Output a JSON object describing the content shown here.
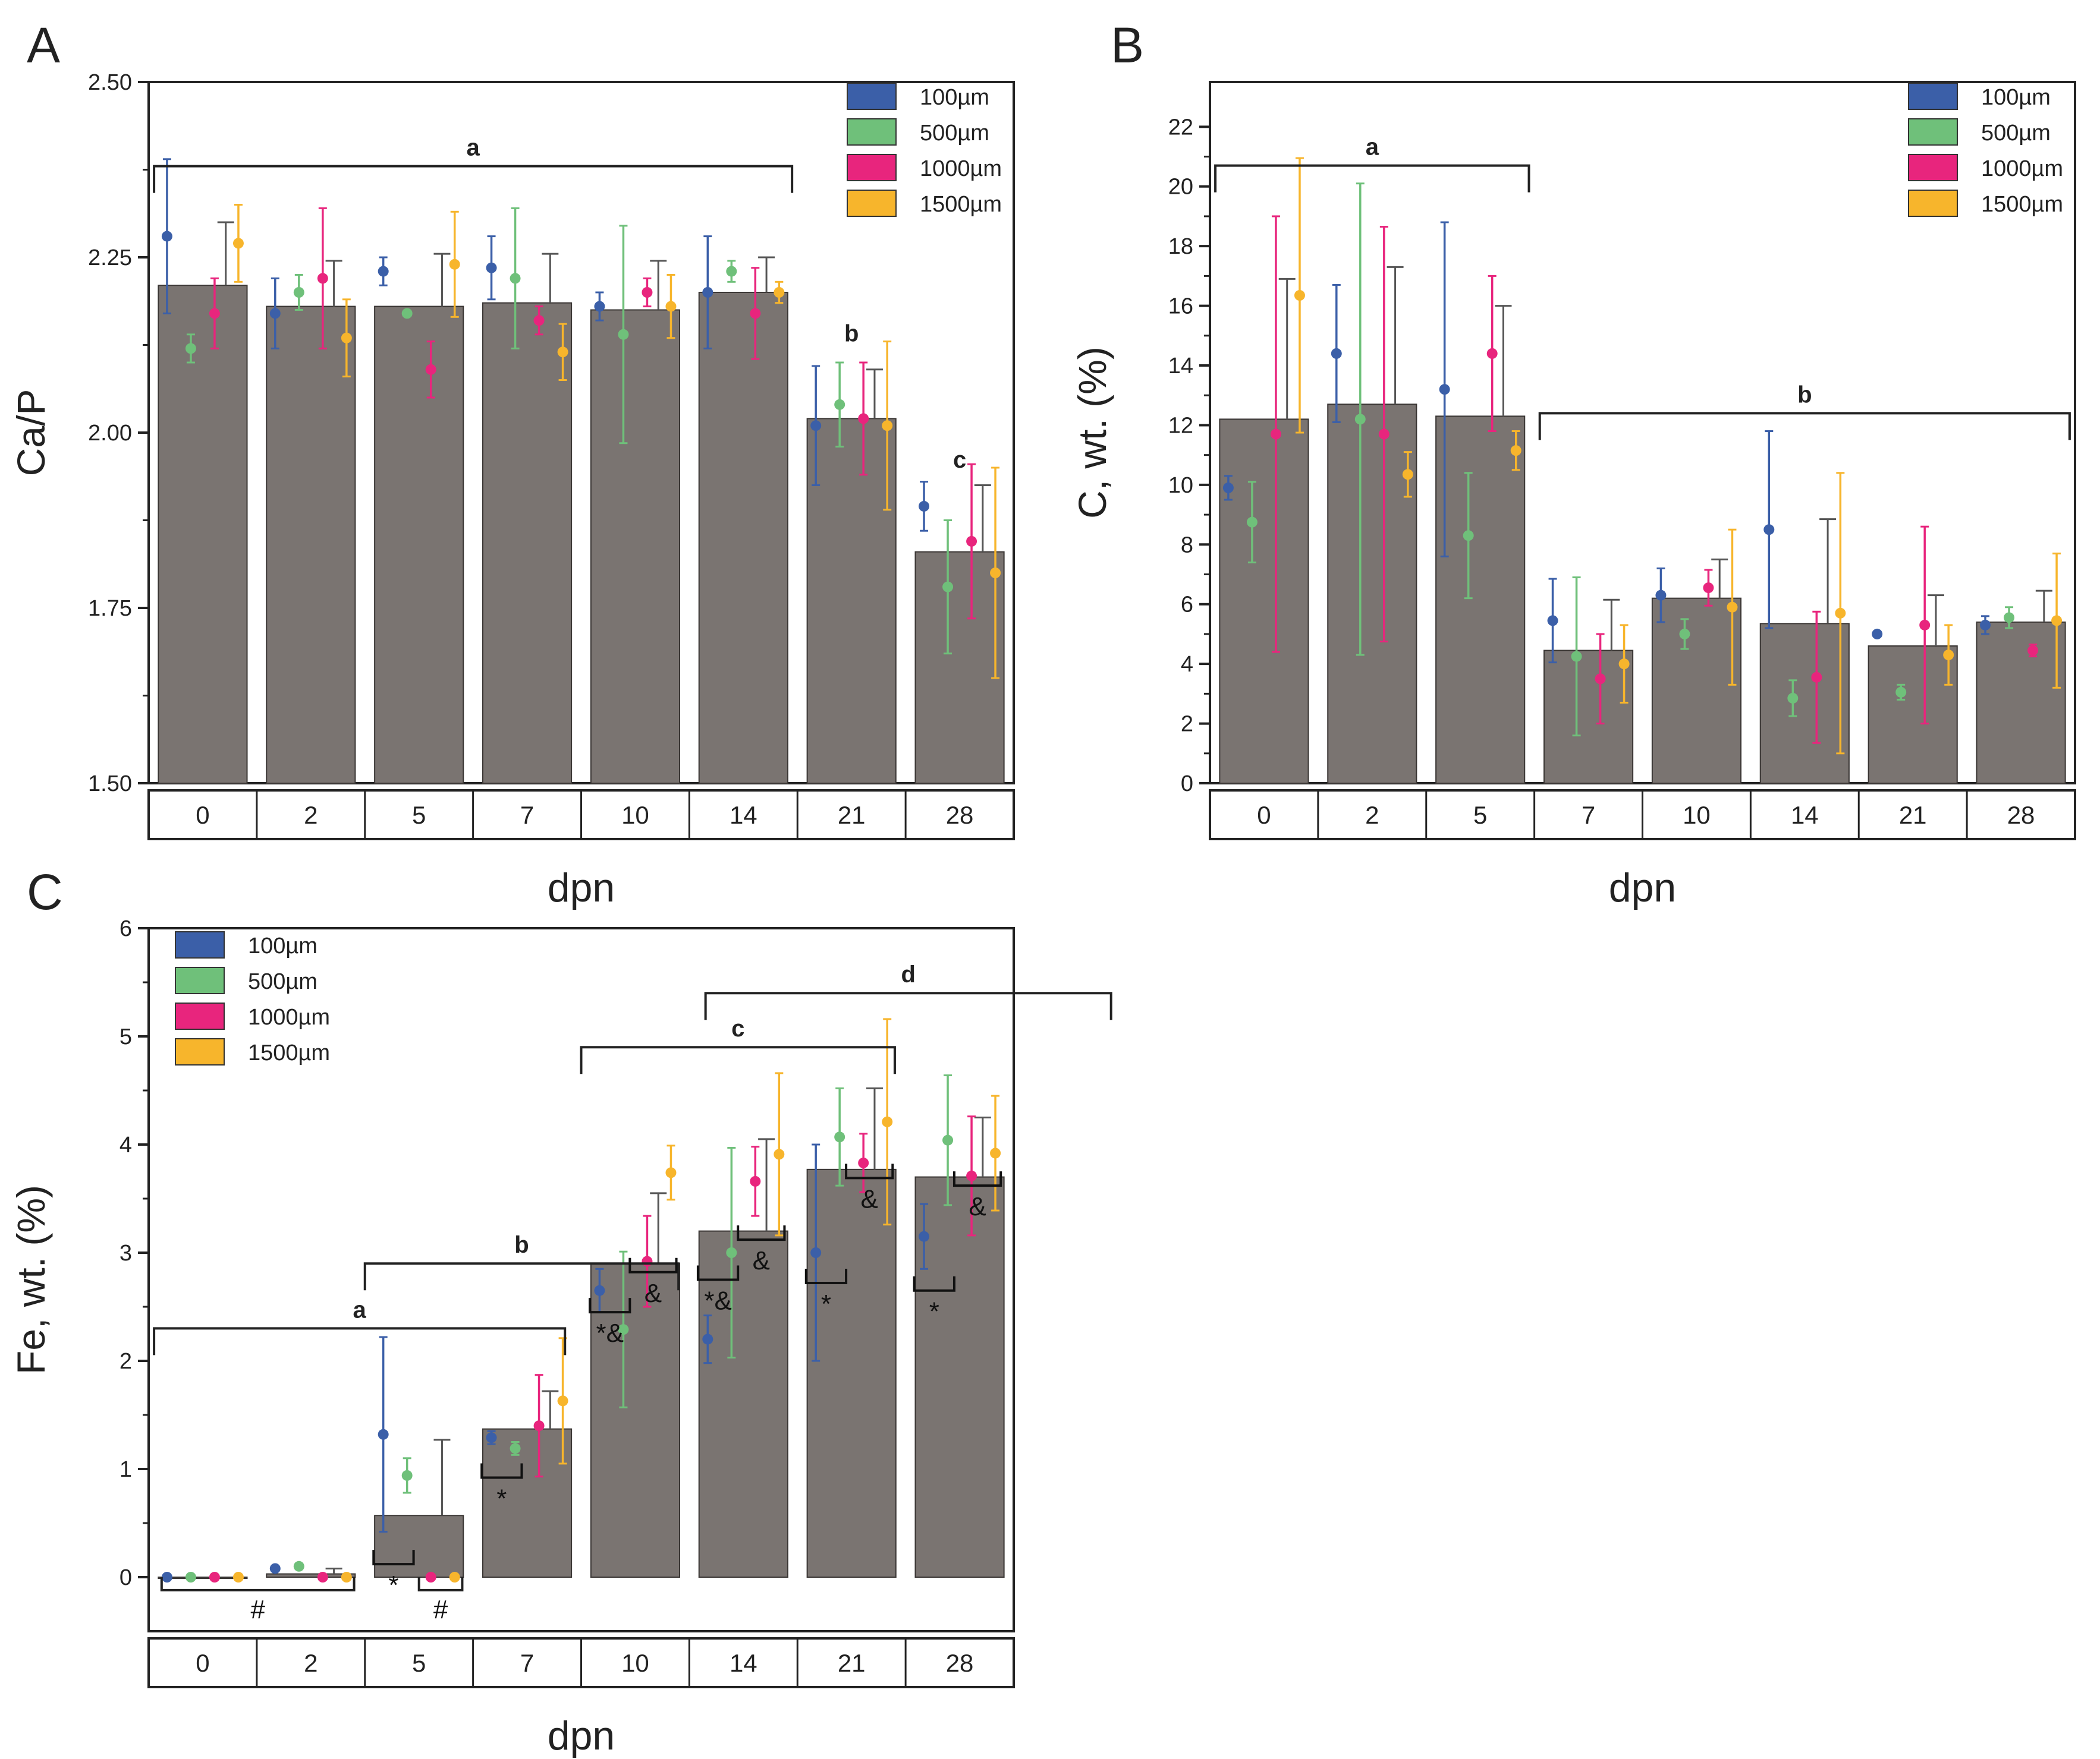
{
  "figure": {
    "panels": [
      "A",
      "B",
      "C"
    ]
  },
  "colors": {
    "bar": "#7a7471",
    "axis": "#222222",
    "legend_100": "#3b5fa8",
    "legend_500": "#6fc07a",
    "legend_1000": "#e8257d",
    "legend_1500": "#f7b52c"
  },
  "chart_data": [
    {
      "panel": "A",
      "type": "bar",
      "ylabel": "Ca/P",
      "xlabel": "dpn",
      "ylim": [
        1.5,
        2.5
      ],
      "yticks": [
        1.5,
        1.75,
        2.0,
        2.25,
        2.5
      ],
      "yticklabels": [
        "1.50",
        "1.75",
        "2.00",
        "2.25",
        "2.50"
      ],
      "categories": [
        "0",
        "2",
        "5",
        "7",
        "10",
        "14",
        "21",
        "28"
      ],
      "bar_values": [
        2.21,
        2.18,
        2.18,
        2.185,
        2.175,
        2.2,
        2.02,
        1.83
      ],
      "bar_err": [
        0.09,
        0.065,
        0.075,
        0.07,
        0.07,
        0.05,
        0.07,
        0.095
      ],
      "legend": [
        "100µm",
        "500µm",
        "1000µm",
        "1500µm"
      ],
      "series": [
        {
          "name": "100µm",
          "values": [
            2.28,
            2.17,
            2.23,
            2.235,
            2.18,
            2.2,
            2.01,
            1.895
          ],
          "err": [
            0.11,
            0.05,
            0.02,
            0.045,
            0.02,
            0.08,
            0.085,
            0.035
          ]
        },
        {
          "name": "500µm",
          "values": [
            2.12,
            2.2,
            2.17,
            2.22,
            2.14,
            2.23,
            2.04,
            1.78
          ],
          "err": [
            0.02,
            0.025,
            0.0,
            0.1,
            0.155,
            0.015,
            0.06,
            0.095
          ]
        },
        {
          "name": "1000µm",
          "values": [
            2.17,
            2.22,
            2.09,
            2.16,
            2.2,
            2.17,
            2.02,
            1.845
          ],
          "err": [
            0.05,
            0.1,
            0.04,
            0.02,
            0.02,
            0.065,
            0.08,
            0.11
          ]
        },
        {
          "name": "1500µm",
          "values": [
            2.27,
            2.135,
            2.24,
            2.115,
            2.18,
            2.2,
            2.01,
            1.8
          ],
          "err": [
            0.055,
            0.055,
            0.075,
            0.04,
            0.045,
            0.015,
            0.12,
            0.15
          ]
        }
      ],
      "brackets": [
        {
          "label": "a",
          "from": 0,
          "to": 5,
          "y": 2.38
        },
        {
          "label": "b",
          "at": 6,
          "y": 2.13
        },
        {
          "label": "c",
          "at": 7,
          "y": 1.95
        }
      ]
    },
    {
      "panel": "B",
      "type": "bar",
      "ylabel": "C, wt. (%)",
      "xlabel": "dpn",
      "ylim": [
        0,
        23.5
      ],
      "yticks": [
        0,
        2,
        4,
        6,
        8,
        10,
        12,
        14,
        16,
        18,
        20,
        22
      ],
      "yticklabels": [
        "0",
        "2",
        "4",
        "6",
        "8",
        "10",
        "12",
        "14",
        "16",
        "18",
        "20",
        "22"
      ],
      "categories": [
        "0",
        "2",
        "5",
        "7",
        "10",
        "14",
        "21",
        "28"
      ],
      "bar_values": [
        12.2,
        12.7,
        12.3,
        4.45,
        6.2,
        5.35,
        4.6,
        5.4
      ],
      "bar_err": [
        4.7,
        4.6,
        3.7,
        1.7,
        1.3,
        3.5,
        1.7,
        1.05
      ],
      "legend": [
        "100µm",
        "500µm",
        "1000µm",
        "1500µm"
      ],
      "series": [
        {
          "name": "100µm",
          "values": [
            9.9,
            14.4,
            13.2,
            5.45,
            6.3,
            8.5,
            5.0,
            5.3
          ],
          "err": [
            0.4,
            2.3,
            5.6,
            1.4,
            0.9,
            3.3,
            0.0,
            0.3
          ]
        },
        {
          "name": "500µm",
          "values": [
            8.75,
            12.2,
            8.3,
            4.25,
            5.0,
            2.85,
            3.05,
            5.55
          ],
          "err": [
            1.35,
            7.9,
            2.1,
            2.65,
            0.5,
            0.6,
            0.25,
            0.35
          ]
        },
        {
          "name": "1000µm",
          "values": [
            11.7,
            11.7,
            14.4,
            3.5,
            6.55,
            3.55,
            5.3,
            4.45
          ],
          "err": [
            7.3,
            6.95,
            2.6,
            1.5,
            0.6,
            2.2,
            3.3,
            0.2
          ]
        },
        {
          "name": "1500µm",
          "values": [
            16.35,
            10.35,
            11.15,
            4.0,
            5.9,
            5.7,
            4.3,
            5.45
          ],
          "err": [
            4.6,
            0.75,
            0.65,
            1.3,
            2.6,
            4.7,
            1.0,
            2.25
          ]
        }
      ],
      "brackets": [
        {
          "label": "a",
          "from": 0,
          "to": 2,
          "y": 20.7
        },
        {
          "label": "b",
          "from": 3,
          "to": 7,
          "y": 12.4
        }
      ]
    },
    {
      "panel": "C",
      "type": "bar",
      "ylabel": "Fe, wt. (%)",
      "xlabel": "dpn",
      "ylim": [
        -0.5,
        6
      ],
      "yticks": [
        0,
        1,
        2,
        3,
        4,
        5,
        6
      ],
      "yticklabels": [
        "0",
        "1",
        "2",
        "3",
        "4",
        "5",
        "6"
      ],
      "categories": [
        "0",
        "2",
        "5",
        "7",
        "10",
        "14",
        "21",
        "28"
      ],
      "bar_values": [
        0.0,
        0.03,
        0.57,
        1.37,
        2.9,
        3.2,
        3.77,
        3.7
      ],
      "bar_err": [
        0.0,
        0.05,
        0.7,
        0.35,
        0.65,
        0.85,
        0.75,
        0.55
      ],
      "legend": [
        "100µm",
        "500µm",
        "1000µm",
        "1500µm"
      ],
      "series": [
        {
          "name": "100µm",
          "values": [
            0.0,
            0.08,
            1.32,
            1.29,
            2.65,
            2.2,
            3.0,
            3.15
          ],
          "err": [
            0.0,
            0.0,
            0.9,
            0.06,
            0.2,
            0.22,
            1.0,
            0.3
          ]
        },
        {
          "name": "500µm",
          "values": [
            0.0,
            0.1,
            0.94,
            1.19,
            2.29,
            3.0,
            4.07,
            4.04
          ],
          "err": [
            0.0,
            0.02,
            0.16,
            0.06,
            0.72,
            0.97,
            0.45,
            0.6
          ]
        },
        {
          "name": "1000µm",
          "values": [
            0.0,
            0.0,
            0.0,
            1.4,
            2.92,
            3.66,
            3.83,
            3.71
          ],
          "err": [
            0.0,
            0.0,
            0.0,
            0.47,
            0.42,
            0.32,
            0.27,
            0.55
          ]
        },
        {
          "name": "1500µm",
          "values": [
            0.0,
            0.0,
            0.0,
            1.63,
            3.74,
            3.91,
            4.21,
            3.92
          ],
          "err": [
            0.0,
            0.0,
            0.0,
            0.58,
            0.25,
            0.75,
            0.95,
            0.53
          ]
        }
      ],
      "brackets": [
        {
          "label": "a",
          "from": 0,
          "to": 2.9,
          "y": 2.3
        },
        {
          "label": "b",
          "from": 1.95,
          "to": 3.95,
          "y": 2.9
        },
        {
          "label": "c",
          "from": 3.95,
          "to": 5.95,
          "y": 4.9
        },
        {
          "label": "d",
          "from": 5.1,
          "to": 7.95,
          "y": 5.4
        }
      ],
      "annotations": [
        {
          "text": "#",
          "under": [
            0,
            1
          ]
        },
        {
          "text": "#",
          "under": [
            2
          ]
        },
        {
          "text": "*",
          "group": 2
        },
        {
          "text": "*",
          "group": 3
        },
        {
          "text": "*&",
          "group": 4
        },
        {
          "text": "&",
          "group": 4
        },
        {
          "text": "*&",
          "group": 5
        },
        {
          "text": "&",
          "group": 5
        },
        {
          "text": "*",
          "group": 6
        },
        {
          "text": "&",
          "group": 6
        },
        {
          "text": "*",
          "group": 7
        },
        {
          "text": "&",
          "group": 7
        }
      ]
    }
  ]
}
